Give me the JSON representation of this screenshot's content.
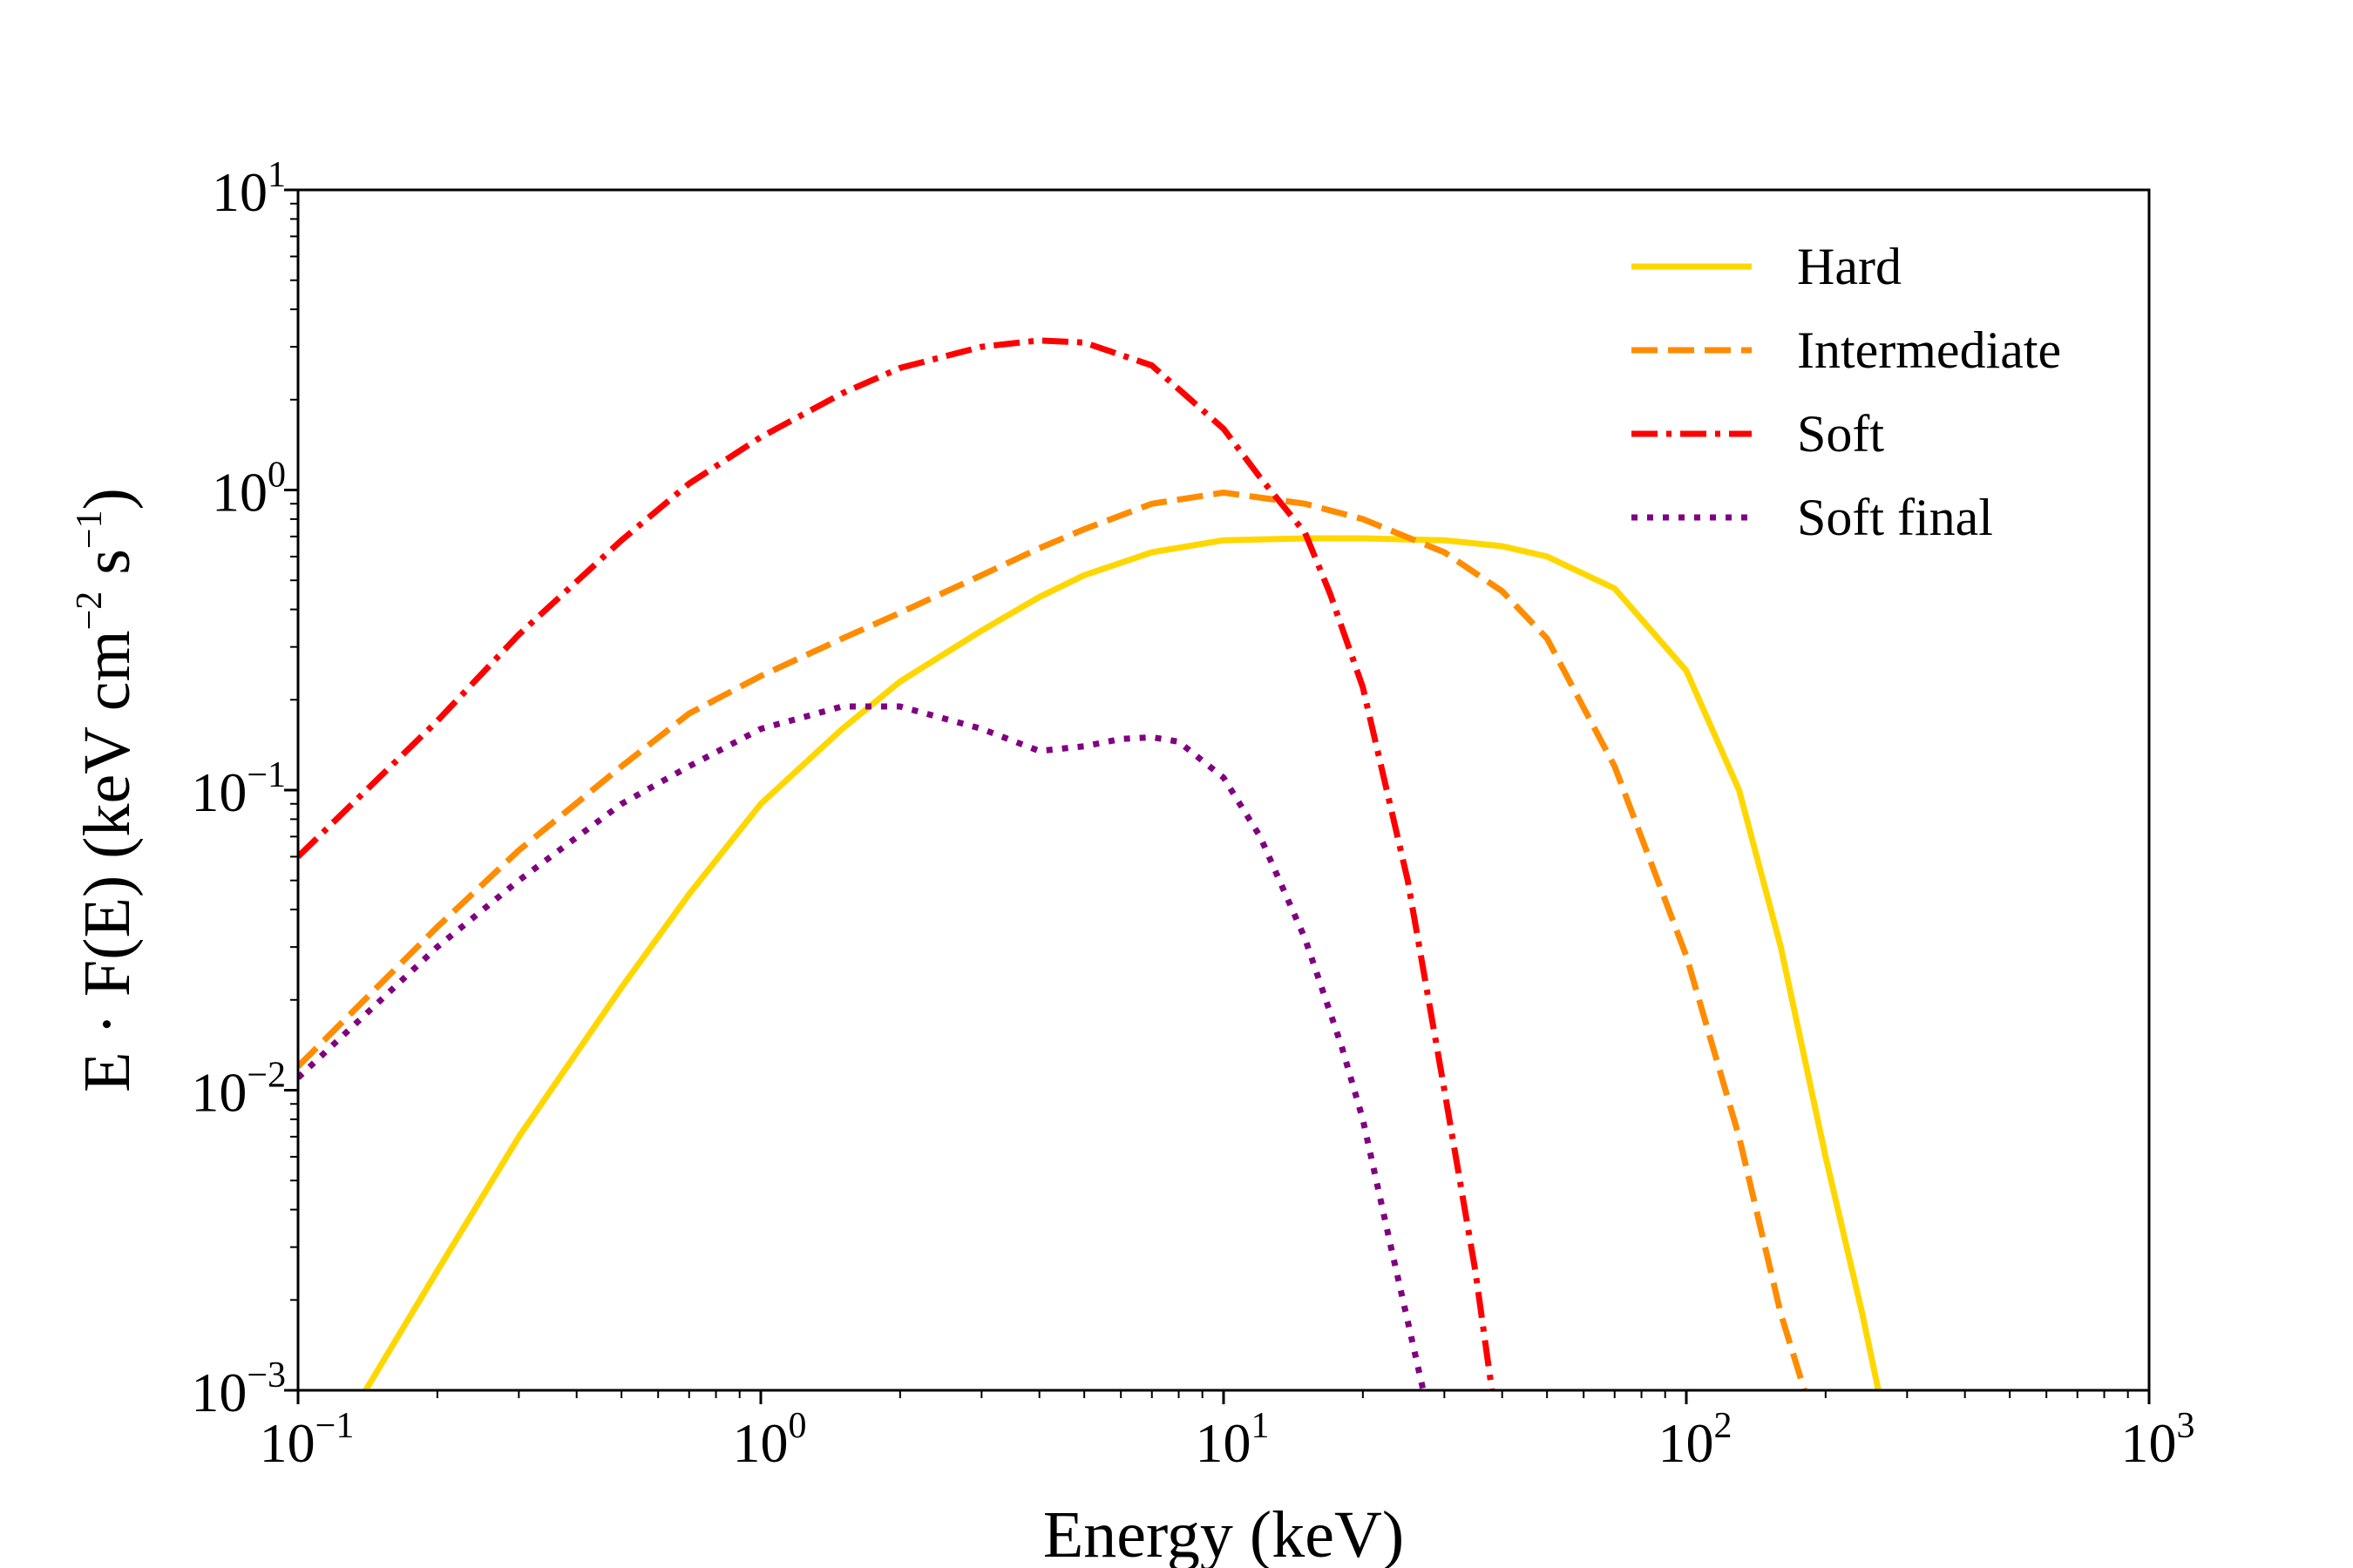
{
  "chart_data": {
    "type": "line",
    "title": "",
    "xlabel": "Energy (keV)",
    "ylabel": {
      "prefix": "E · F(E) (keV cm",
      "sup1": "−2",
      "mid": " s",
      "sup2": "−1",
      "suffix": ")"
    },
    "x_scale": "log",
    "y_scale": "log",
    "xlim": [
      0.1,
      1000
    ],
    "ylim": [
      0.001,
      10
    ],
    "grid": false,
    "legend_position": "top-right",
    "x_ticks": [
      {
        "value": 0.1,
        "base": "10",
        "exp": "−1"
      },
      {
        "value": 1,
        "base": "10",
        "exp": "0"
      },
      {
        "value": 10,
        "base": "10",
        "exp": "1"
      },
      {
        "value": 100,
        "base": "10",
        "exp": "2"
      },
      {
        "value": 1000,
        "base": "10",
        "exp": "3"
      }
    ],
    "y_ticks": [
      {
        "value": 0.001,
        "base": "10",
        "exp": "−3"
      },
      {
        "value": 0.01,
        "base": "10",
        "exp": "−2"
      },
      {
        "value": 0.1,
        "base": "10",
        "exp": "−1"
      },
      {
        "value": 1,
        "base": "10",
        "exp": "0"
      },
      {
        "value": 10,
        "base": "10",
        "exp": "1"
      }
    ],
    "series": [
      {
        "name": "Hard",
        "color": "#FFD700",
        "dash": "solid",
        "x": [
          0.14,
          0.2,
          0.3,
          0.5,
          0.7,
          1,
          1.5,
          2,
          3,
          4,
          5,
          7,
          10,
          15,
          20,
          30,
          40,
          50,
          70,
          100,
          130,
          160,
          200,
          240,
          260
        ],
        "y": [
          0.001,
          0.0025,
          0.007,
          0.022,
          0.045,
          0.09,
          0.16,
          0.23,
          0.34,
          0.44,
          0.52,
          0.62,
          0.68,
          0.69,
          0.69,
          0.68,
          0.65,
          0.6,
          0.47,
          0.25,
          0.1,
          0.03,
          0.006,
          0.0018,
          0.001
        ]
      },
      {
        "name": "Intermediate",
        "color": "#FF8C00",
        "dash": "dashed",
        "x": [
          0.1,
          0.2,
          0.3,
          0.5,
          0.7,
          1,
          1.5,
          2,
          3,
          4,
          5,
          7,
          10,
          15,
          20,
          30,
          40,
          50,
          70,
          100,
          130,
          160,
          180
        ],
        "y": [
          0.012,
          0.035,
          0.063,
          0.12,
          0.18,
          0.24,
          0.32,
          0.39,
          0.52,
          0.64,
          0.74,
          0.9,
          0.98,
          0.9,
          0.8,
          0.62,
          0.46,
          0.32,
          0.12,
          0.028,
          0.007,
          0.0018,
          0.001
        ]
      },
      {
        "name": "Soft",
        "color": "#FF0000",
        "dash": "dashdot",
        "x": [
          0.1,
          0.2,
          0.3,
          0.5,
          0.7,
          1,
          1.5,
          2,
          3,
          4,
          5,
          7,
          10,
          12,
          15,
          17,
          20,
          25,
          30,
          35,
          38
        ],
        "y": [
          0.06,
          0.17,
          0.33,
          0.68,
          1.05,
          1.5,
          2.1,
          2.55,
          3.0,
          3.15,
          3.1,
          2.6,
          1.6,
          1.1,
          0.72,
          0.45,
          0.22,
          0.05,
          0.01,
          0.0025,
          0.001
        ]
      },
      {
        "name": "Soft final",
        "color": "#800080",
        "dash": "dotted",
        "x": [
          0.1,
          0.2,
          0.3,
          0.5,
          0.7,
          1,
          1.5,
          2,
          3,
          4,
          5,
          6,
          7,
          8,
          10,
          12,
          15,
          18,
          20,
          23,
          25,
          27
        ],
        "y": [
          0.011,
          0.03,
          0.05,
          0.09,
          0.12,
          0.16,
          0.19,
          0.19,
          0.16,
          0.135,
          0.14,
          0.148,
          0.15,
          0.145,
          0.11,
          0.07,
          0.032,
          0.014,
          0.008,
          0.003,
          0.0017,
          0.001
        ]
      }
    ]
  }
}
